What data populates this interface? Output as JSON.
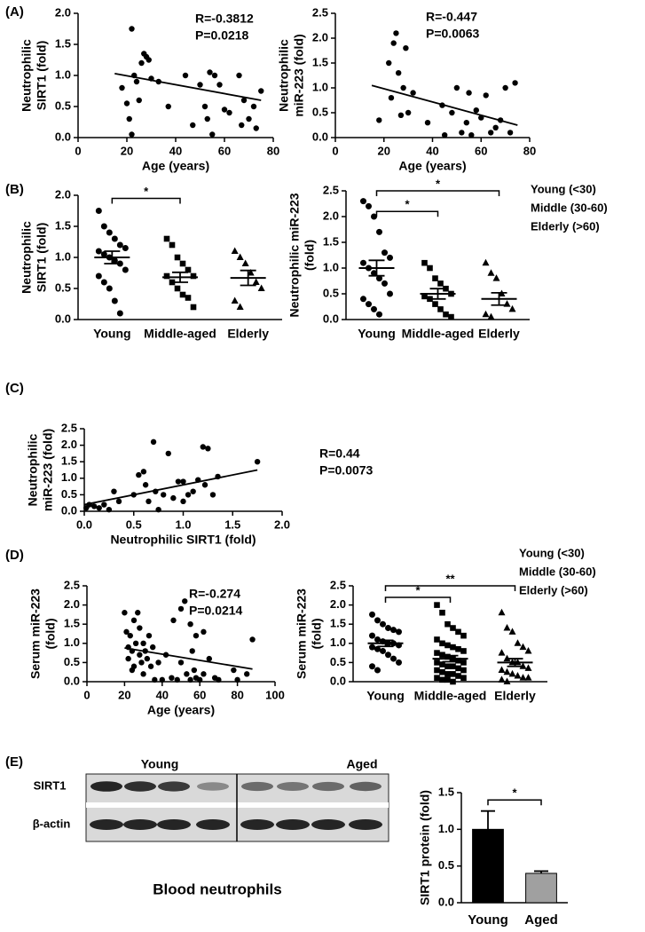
{
  "chart_data": [
    {
      "type": "scatter",
      "panel": "(A)",
      "ylabel": [
        "Neutrophilic",
        "SIRT1 (fold)"
      ],
      "xlabel": "Age (years)",
      "annotations": [
        "R=-0.3812",
        "P=0.0218"
      ],
      "x": [
        18,
        20,
        21,
        22,
        22,
        23,
        24,
        25,
        26,
        27,
        28,
        29,
        30,
        33,
        37,
        44,
        47,
        50,
        52,
        53,
        54,
        55,
        56,
        58,
        60,
        62,
        66,
        67,
        68,
        70,
        72,
        73,
        75
      ],
      "values": [
        0.8,
        0.55,
        0.3,
        1.75,
        0.05,
        1.0,
        0.9,
        0.6,
        1.2,
        1.35,
        1.3,
        1.25,
        0.95,
        0.9,
        0.5,
        1.0,
        0.2,
        0.85,
        0.5,
        0.3,
        1.05,
        0.05,
        1.0,
        0.85,
        0.45,
        0.4,
        1.0,
        0.2,
        0.6,
        0.3,
        0.5,
        0.15,
        0.75
      ],
      "trend": {
        "x": [
          15,
          75
        ],
        "y": [
          1.03,
          0.6
        ]
      },
      "color": "#000000",
      "xlim": [
        0,
        80
      ],
      "xticks": [
        0,
        20,
        40,
        60,
        80
      ],
      "ylim": [
        0,
        2
      ],
      "yticks": [
        {
          "value": 0,
          "label": "0.0"
        },
        {
          "value": 0.5,
          "label": "0.5"
        },
        {
          "value": 1,
          "label": "1.0"
        },
        {
          "value": 1.5,
          "label": "1.5"
        },
        {
          "value": 2,
          "label": "2.0"
        }
      ]
    },
    {
      "type": "scatter",
      "ylabel": [
        "Neutrophilic",
        "miR-223 (fold)"
      ],
      "xlabel": "Age (years)",
      "annotations": [
        "R=-0.447",
        "P=0.0063"
      ],
      "x": [
        18,
        22,
        23,
        24,
        25,
        26,
        27,
        28,
        29,
        30,
        32,
        38,
        44,
        45,
        48,
        50,
        52,
        54,
        55,
        56,
        58,
        60,
        62,
        64,
        66,
        68,
        70,
        72,
        74
      ],
      "values": [
        0.35,
        1.5,
        0.8,
        1.9,
        2.1,
        1.3,
        0.45,
        1.0,
        1.8,
        0.5,
        0.9,
        0.3,
        0.65,
        0.05,
        0.5,
        1.0,
        0.1,
        0.3,
        0.9,
        0.05,
        0.55,
        0.4,
        0.85,
        0.1,
        0.2,
        0.35,
        1.0,
        0.1,
        1.1
      ],
      "trend": {
        "x": [
          15,
          75
        ],
        "y": [
          1.05,
          0.25
        ]
      },
      "color": "#000000",
      "xlim": [
        0,
        80
      ],
      "xticks": [
        0,
        20,
        40,
        60,
        80
      ],
      "ylim": [
        0,
        2.5
      ],
      "yticks": [
        {
          "value": 0,
          "label": "0.0"
        },
        {
          "value": 0.5,
          "label": "0.5"
        },
        {
          "value": 1,
          "label": "1.0"
        },
        {
          "value": 1.5,
          "label": "1.5"
        },
        {
          "value": 2,
          "label": "2.0"
        },
        {
          "value": 2.5,
          "label": "2.5"
        }
      ]
    },
    {
      "type": "dot",
      "panel": "(B)",
      "ylabel": [
        "Neutrophilic",
        "SIRT1 (fold)"
      ],
      "categories": [
        "Young",
        "Middle-aged",
        "Elderly"
      ],
      "markers": [
        "circle",
        "square",
        "triangle"
      ],
      "color": "#000000",
      "groups": [
        [
          1.75,
          1.5,
          1.4,
          1.3,
          1.2,
          1.15,
          1.1,
          1.05,
          1.0,
          0.95,
          0.9,
          0.8,
          0.7,
          0.6,
          0.5,
          0.3,
          0.1
        ],
        [
          1.3,
          1.2,
          1.0,
          0.9,
          0.8,
          0.7,
          0.7,
          0.6,
          0.5,
          0.4,
          0.35,
          0.2
        ],
        [
          1.1,
          1.0,
          0.9,
          0.75,
          0.6,
          0.5,
          0.3,
          0.2
        ]
      ],
      "mean": [
        1.0,
        0.68,
        0.67
      ],
      "sem": [
        0.1,
        0.08,
        0.12
      ],
      "brackets": [
        {
          "from": 0,
          "to": 1,
          "y": 1.95,
          "label": "*"
        }
      ],
      "ylim": [
        0,
        2
      ],
      "yticks": [
        {
          "value": 0,
          "label": "0.0"
        },
        {
          "value": 0.5,
          "label": "0.5"
        },
        {
          "value": 1,
          "label": "1.0"
        },
        {
          "value": 1.5,
          "label": "1.5"
        },
        {
          "value": 2,
          "label": "2.0"
        }
      ]
    },
    {
      "type": "dot",
      "ylabel": [
        "Neutrophilic miR-223",
        "(fold)"
      ],
      "key": [
        "Young (<30)",
        "Middle (30-60)",
        "Elderly (>60)"
      ],
      "categories": [
        "Young",
        "Middle-aged",
        "Elderly"
      ],
      "markers": [
        "circle",
        "square",
        "triangle"
      ],
      "color": "#000000",
      "groups": [
        [
          2.3,
          2.2,
          2.0,
          1.7,
          1.3,
          1.2,
          1.1,
          1.0,
          0.9,
          0.8,
          0.7,
          0.5,
          0.4,
          0.3,
          0.2,
          0.1
        ],
        [
          1.1,
          1.0,
          0.8,
          0.7,
          0.6,
          0.5,
          0.45,
          0.4,
          0.3,
          0.2,
          0.1,
          0.05
        ],
        [
          1.1,
          0.9,
          0.8,
          0.5,
          0.3,
          0.2,
          0.1,
          0.05
        ]
      ],
      "mean": [
        1.0,
        0.5,
        0.4
      ],
      "sem": [
        0.15,
        0.1,
        0.12
      ],
      "brackets": [
        {
          "from": 0,
          "to": 1,
          "y": 2.1,
          "label": "*"
        },
        {
          "from": 0,
          "to": 2,
          "y": 2.5,
          "label": "*"
        }
      ],
      "ylim": [
        0,
        2.5
      ],
      "yticks": [
        {
          "value": 0,
          "label": "0.0"
        },
        {
          "value": 0.5,
          "label": "0.5"
        },
        {
          "value": 1,
          "label": "1.0"
        },
        {
          "value": 1.5,
          "label": "1.5"
        },
        {
          "value": 2,
          "label": "2.0"
        },
        {
          "value": 2.5,
          "label": "2.5"
        }
      ]
    },
    {
      "type": "scatter",
      "panel": "(C)",
      "ylabel": [
        "Neutrophilic",
        "miR-223 (fold)"
      ],
      "xlabel": "Neutrophilic SIRT1 (fold)",
      "annotations": [
        "R=0.44",
        "P=0.0073"
      ],
      "x": [
        0.02,
        0.05,
        0.1,
        0.15,
        0.2,
        0.25,
        0.3,
        0.35,
        0.5,
        0.55,
        0.6,
        0.62,
        0.65,
        0.7,
        0.72,
        0.75,
        0.8,
        0.85,
        0.9,
        0.95,
        1.0,
        1.0,
        1.05,
        1.1,
        1.15,
        1.2,
        1.22,
        1.25,
        1.3,
        1.35,
        1.75
      ],
      "values": [
        0.1,
        0.2,
        0.15,
        0.1,
        0.2,
        0.05,
        0.6,
        0.3,
        0.5,
        1.1,
        1.2,
        0.8,
        0.3,
        2.1,
        0.6,
        0.05,
        0.5,
        1.75,
        0.4,
        0.9,
        0.3,
        0.9,
        0.5,
        0.6,
        0.95,
        1.95,
        0.8,
        1.9,
        0.5,
        1.05,
        1.5
      ],
      "trend": {
        "x": [
          0,
          1.75
        ],
        "y": [
          0.2,
          1.25
        ]
      },
      "color": "#000000",
      "xlim": [
        0,
        2
      ],
      "xticks": [
        {
          "value": 0,
          "label": "0.0"
        },
        {
          "value": 0.5,
          "label": "0.5"
        },
        {
          "value": 1,
          "label": "1.0"
        },
        {
          "value": 1.5,
          "label": "1.5"
        },
        {
          "value": 2,
          "label": "2.0"
        }
      ],
      "ylim": [
        0,
        2.5
      ],
      "yticks": [
        {
          "value": 0,
          "label": "0.0"
        },
        {
          "value": 0.5,
          "label": "0.5"
        },
        {
          "value": 1,
          "label": "1.0"
        },
        {
          "value": 1.5,
          "label": "1.5"
        },
        {
          "value": 2,
          "label": "2.0"
        },
        {
          "value": 2.5,
          "label": "2.5"
        }
      ]
    },
    {
      "type": "scatter",
      "panel": "(D)",
      "ylabel": [
        "Serum miR-223",
        "(fold)"
      ],
      "xlabel": "Age (years)",
      "annotations": [
        "R=-0.274",
        "P=0.0214"
      ],
      "x": [
        20,
        21,
        22,
        22,
        23,
        24,
        24,
        25,
        25,
        26,
        27,
        28,
        28,
        29,
        30,
        30,
        31,
        32,
        33,
        34,
        35,
        36,
        38,
        40,
        42,
        45,
        46,
        48,
        50,
        50,
        52,
        53,
        55,
        55,
        56,
        57,
        58,
        58,
        60,
        62,
        62,
        65,
        68,
        70,
        78,
        80,
        85,
        88
      ],
      "values": [
        1.8,
        1.3,
        0.9,
        0.6,
        1.2,
        0.8,
        0.3,
        1.6,
        0.4,
        1.0,
        1.8,
        0.7,
        1.4,
        0.5,
        1.0,
        0.2,
        0.8,
        0.6,
        1.2,
        0.4,
        0.9,
        0.05,
        0.5,
        0.05,
        0.7,
        0.1,
        1.6,
        0.05,
        1.9,
        0.5,
        2.1,
        0.2,
        1.5,
        0.05,
        0.8,
        0.3,
        1.2,
        0.1,
        0.05,
        1.3,
        0.2,
        0.6,
        0.1,
        0.05,
        0.3,
        0.05,
        0.2,
        1.1
      ],
      "trend": {
        "x": [
          20,
          88
        ],
        "y": [
          0.88,
          0.33
        ]
      },
      "color": "#000000",
      "xlim": [
        0,
        100
      ],
      "xticks": [
        0,
        20,
        40,
        60,
        80,
        100
      ],
      "ylim": [
        0,
        2.5
      ],
      "yticks": [
        {
          "value": 0,
          "label": "0.0"
        },
        {
          "value": 0.5,
          "label": "0.5"
        },
        {
          "value": 1,
          "label": "1.0"
        },
        {
          "value": 1.5,
          "label": "1.5"
        },
        {
          "value": 2,
          "label": "2.0"
        },
        {
          "value": 2.5,
          "label": "2.5"
        }
      ]
    },
    {
      "type": "dot",
      "ylabel": [
        "Serum miR-223",
        "(fold)"
      ],
      "key": [
        "Young (<30)",
        "Middle (30-60)",
        "Elderly (>60)"
      ],
      "categories": [
        "Young",
        "Middle-aged",
        "Elderly"
      ],
      "markers": [
        "circle",
        "square",
        "triangle"
      ],
      "color": "#000000",
      "groups": [
        [
          1.75,
          1.6,
          1.5,
          1.4,
          1.35,
          1.3,
          1.2,
          1.1,
          1.05,
          1.0,
          1.0,
          0.95,
          0.9,
          0.85,
          0.8,
          0.7,
          0.6,
          0.5,
          0.4,
          0.3
        ],
        [
          2.0,
          1.8,
          1.5,
          1.4,
          1.3,
          1.2,
          1.1,
          1.0,
          0.95,
          0.9,
          0.85,
          0.8,
          0.75,
          0.7,
          0.65,
          0.6,
          0.55,
          0.5,
          0.5,
          0.45,
          0.4,
          0.4,
          0.35,
          0.3,
          0.3,
          0.25,
          0.2,
          0.2,
          0.15,
          0.1,
          0.1,
          0.05,
          0.05,
          0.0
        ],
        [
          1.8,
          1.4,
          1.3,
          1.0,
          0.9,
          0.8,
          0.75,
          0.6,
          0.5,
          0.5,
          0.4,
          0.35,
          0.3,
          0.25,
          0.2,
          0.15,
          0.1,
          0.1,
          0.05,
          0.0
        ]
      ],
      "mean": [
        1.0,
        0.6,
        0.5
      ],
      "sem": [
        0.08,
        0.08,
        0.1
      ],
      "brackets": [
        {
          "from": 0,
          "to": 1,
          "y": 2.2,
          "label": "*"
        },
        {
          "from": 0,
          "to": 2,
          "y": 2.5,
          "label": "**"
        }
      ],
      "ylim": [
        0,
        2.5
      ],
      "yticks": [
        {
          "value": 0,
          "label": "0.0"
        },
        {
          "value": 0.5,
          "label": "0.5"
        },
        {
          "value": 1,
          "label": "1.0"
        },
        {
          "value": 1.5,
          "label": "1.5"
        },
        {
          "value": 2,
          "label": "2.0"
        },
        {
          "value": 2.5,
          "label": "2.5"
        }
      ]
    },
    {
      "type": "bar",
      "ylabel": [
        "SIRT1 protein (fold)"
      ],
      "categories": [
        "Young",
        "Aged"
      ],
      "values": [
        1.0,
        0.4
      ],
      "errors": [
        0.25,
        0.03
      ],
      "colors": [
        "#000000",
        "#a0a0a0"
      ],
      "brackets": [
        {
          "from": 0,
          "to": 1,
          "y": 1.4,
          "label": "*"
        }
      ],
      "ylim": [
        0,
        1.5
      ],
      "yticks": [
        {
          "value": 0,
          "label": "0.0"
        },
        {
          "value": 0.5,
          "label": "0.5"
        },
        {
          "value": 1,
          "label": "1.0"
        },
        {
          "value": 1.5,
          "label": "1.5"
        }
      ]
    }
  ],
  "blot": {
    "panel": "(E)",
    "groups": [
      "Young",
      "Aged"
    ],
    "rows": [
      "SIRT1",
      "β-actin"
    ],
    "caption": "Blood neutrophils"
  }
}
